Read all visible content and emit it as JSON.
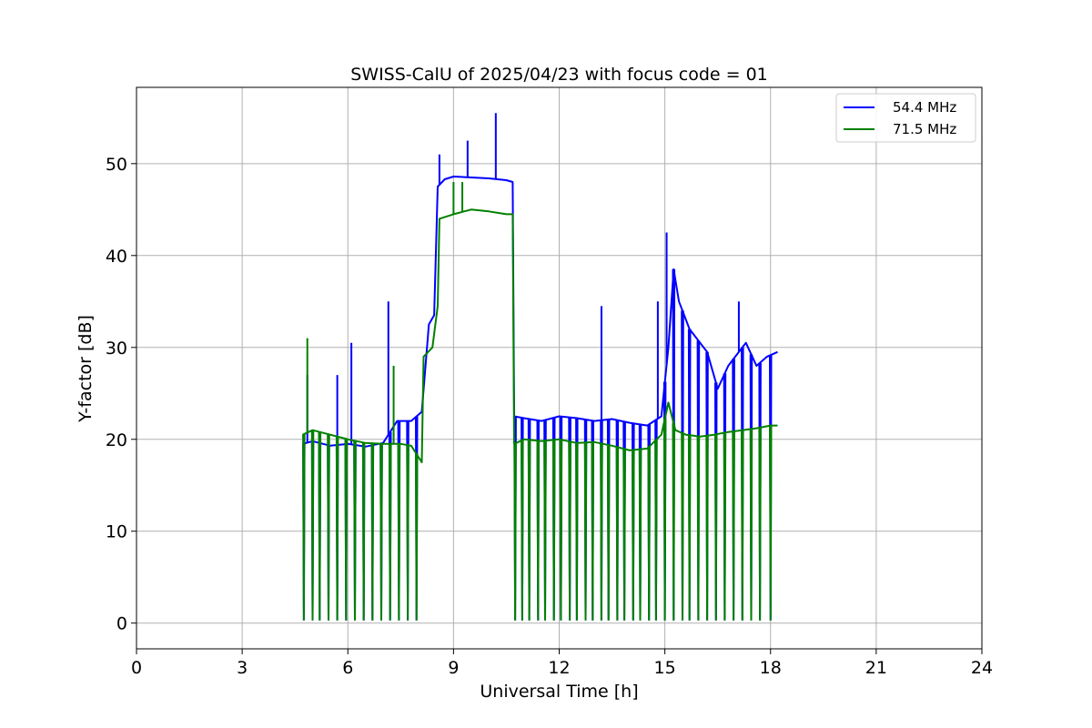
{
  "chart_data": {
    "type": "line",
    "title": "SWISS-CalU of 2025/04/23 with focus code = 01",
    "xlabel": "Universal Time [h]",
    "ylabel": "Y-factor [dB]",
    "xlim": [
      0,
      24
    ],
    "ylim": [
      -2.8,
      58.3
    ],
    "xticks": [
      0,
      3,
      6,
      9,
      12,
      15,
      18,
      21,
      24
    ],
    "yticks": [
      0,
      10,
      20,
      30,
      40,
      50
    ],
    "grid": true,
    "legend_position": "top-right",
    "series": [
      {
        "name": "54.4 MHz",
        "color": "#0000ff",
        "spikes_down": [
          4.75,
          5.0,
          5.2,
          5.45,
          5.7,
          5.95,
          6.2,
          6.45,
          6.7,
          6.95,
          7.2,
          7.45,
          7.7,
          7.95,
          10.75,
          10.95,
          11.15,
          11.4,
          11.6,
          11.85,
          12.05,
          12.3,
          12.5,
          12.75,
          12.95,
          13.2,
          13.4,
          13.65,
          13.85,
          14.1,
          14.3,
          14.55,
          14.75,
          15.0,
          15.25,
          15.5,
          15.7,
          15.95,
          16.2,
          16.45,
          16.7,
          16.95,
          17.2,
          17.45,
          17.7,
          18.0
        ],
        "spikes_up": [
          [
            4.85,
            27
          ],
          [
            5.7,
            27
          ],
          [
            6.1,
            30.5
          ],
          [
            7.15,
            35
          ],
          [
            8.6,
            51
          ],
          [
            9.4,
            52.5
          ],
          [
            10.2,
            55.5
          ],
          [
            13.2,
            34.5
          ],
          [
            14.8,
            35
          ],
          [
            15.05,
            42.5
          ],
          [
            17.1,
            35
          ]
        ],
        "points": [
          [
            4.72,
            19.5
          ],
          [
            5.0,
            19.8
          ],
          [
            5.5,
            19.3
          ],
          [
            6.0,
            19.5
          ],
          [
            6.5,
            19.2
          ],
          [
            7.0,
            19.6
          ],
          [
            7.4,
            22
          ],
          [
            7.8,
            22
          ],
          [
            8.1,
            23
          ],
          [
            8.3,
            32.5
          ],
          [
            8.45,
            33.5
          ],
          [
            8.55,
            47.5
          ],
          [
            8.75,
            48.3
          ],
          [
            9.0,
            48.6
          ],
          [
            9.5,
            48.5
          ],
          [
            10.0,
            48.4
          ],
          [
            10.5,
            48.2
          ],
          [
            10.68,
            48.0
          ],
          [
            10.72,
            22.5
          ],
          [
            11.0,
            22.3
          ],
          [
            11.5,
            22.0
          ],
          [
            12.0,
            22.5
          ],
          [
            12.5,
            22.3
          ],
          [
            13.0,
            22.0
          ],
          [
            13.5,
            22.2
          ],
          [
            14.0,
            21.8
          ],
          [
            14.5,
            21.5
          ],
          [
            14.9,
            22.5
          ],
          [
            15.1,
            30
          ],
          [
            15.25,
            38.5
          ],
          [
            15.4,
            35
          ],
          [
            15.7,
            32
          ],
          [
            16.0,
            30.5
          ],
          [
            16.2,
            29.5
          ],
          [
            16.5,
            25.5
          ],
          [
            16.8,
            28
          ],
          [
            17.0,
            29
          ],
          [
            17.3,
            30.5
          ],
          [
            17.6,
            28
          ],
          [
            17.9,
            29
          ],
          [
            18.2,
            29.5
          ]
        ]
      },
      {
        "name": "71.5 MHz",
        "color": "#008000",
        "spikes_down": [
          4.75,
          5.0,
          5.2,
          5.45,
          5.7,
          5.95,
          6.2,
          6.45,
          6.7,
          6.95,
          7.2,
          7.45,
          7.7,
          7.95,
          10.75,
          10.95,
          11.15,
          11.4,
          11.6,
          11.85,
          12.05,
          12.3,
          12.5,
          12.75,
          12.95,
          13.2,
          13.4,
          13.65,
          13.85,
          14.1,
          14.3,
          14.55,
          14.75,
          15.0,
          15.25,
          15.5,
          15.7,
          15.95,
          16.2,
          16.45,
          16.7,
          16.95,
          17.2,
          17.45,
          17.7,
          18.0
        ],
        "spikes_up": [
          [
            4.85,
            31
          ],
          [
            7.3,
            28
          ],
          [
            9.0,
            48
          ],
          [
            9.25,
            48
          ]
        ],
        "points": [
          [
            4.72,
            20.5
          ],
          [
            5.0,
            21.0
          ],
          [
            5.5,
            20.5
          ],
          [
            6.0,
            20.0
          ],
          [
            6.5,
            19.6
          ],
          [
            7.0,
            19.5
          ],
          [
            7.5,
            19.5
          ],
          [
            7.8,
            19.3
          ],
          [
            8.1,
            17.5
          ],
          [
            8.15,
            29
          ],
          [
            8.4,
            30
          ],
          [
            8.55,
            34.5
          ],
          [
            8.6,
            44
          ],
          [
            9.0,
            44.5
          ],
          [
            9.5,
            45.0
          ],
          [
            10.0,
            44.8
          ],
          [
            10.5,
            44.5
          ],
          [
            10.68,
            44.5
          ],
          [
            10.72,
            19.5
          ],
          [
            11.0,
            20.0
          ],
          [
            11.5,
            19.8
          ],
          [
            12.0,
            20.0
          ],
          [
            12.5,
            19.6
          ],
          [
            13.0,
            19.7
          ],
          [
            13.5,
            19.3
          ],
          [
            14.0,
            18.8
          ],
          [
            14.5,
            19.0
          ],
          [
            14.9,
            20.5
          ],
          [
            15.1,
            24
          ],
          [
            15.3,
            21
          ],
          [
            15.6,
            20.5
          ],
          [
            16.0,
            20.3
          ],
          [
            16.4,
            20.5
          ],
          [
            16.8,
            20.8
          ],
          [
            17.2,
            21.0
          ],
          [
            17.6,
            21.2
          ],
          [
            18.0,
            21.5
          ],
          [
            18.2,
            21.5
          ]
        ]
      }
    ]
  }
}
